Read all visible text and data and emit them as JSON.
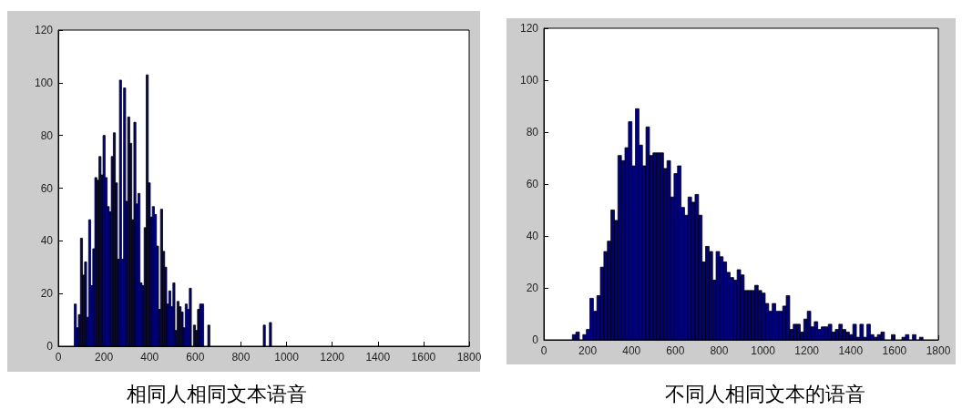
{
  "chart_data": [
    {
      "type": "histogram",
      "title": "相同人相同文本语音",
      "color": "#000080",
      "bins": [
        70,
        79,
        88,
        97,
        106,
        115,
        124,
        133,
        142,
        151,
        160,
        169,
        178,
        187,
        196,
        205,
        214,
        223,
        232,
        241,
        250,
        259,
        268,
        277,
        286,
        295,
        304,
        313,
        322,
        331,
        340,
        349,
        358,
        367,
        376,
        385,
        394,
        403,
        412,
        421,
        430,
        439,
        448,
        457,
        466,
        475,
        484,
        493,
        502,
        511,
        520,
        529,
        538,
        547,
        556,
        565,
        574,
        583,
        592,
        601,
        610,
        619,
        628,
        637,
        646,
        655,
        664,
        673,
        682,
        691,
        700,
        709,
        718,
        727,
        736,
        745,
        754,
        763,
        772,
        781,
        790,
        799,
        808,
        817,
        826,
        835,
        844,
        853,
        862,
        871,
        880,
        889,
        898,
        907,
        916,
        925,
        934
      ],
      "values": [
        16,
        7,
        12,
        41,
        27,
        32,
        11,
        48,
        23,
        37,
        64,
        63,
        72,
        65,
        80,
        64,
        53,
        51,
        72,
        81,
        62,
        33,
        101,
        33,
        98,
        55,
        87,
        77,
        48,
        85,
        54,
        58,
        24,
        23,
        45,
        103,
        62,
        49,
        53,
        50,
        38,
        14,
        52,
        36,
        30,
        16,
        21,
        15,
        24,
        6,
        17,
        15,
        13,
        7,
        16,
        14,
        22,
        0,
        8,
        6,
        14,
        16,
        16,
        0,
        0,
        8,
        0,
        0,
        0,
        0,
        0,
        0,
        0,
        0,
        0,
        0,
        0,
        0,
        0,
        0,
        0,
        0,
        0,
        0,
        0,
        0,
        0,
        0,
        0,
        0,
        0,
        0,
        8,
        0,
        0,
        9
      ],
      "xlim": [
        0,
        1800
      ],
      "xticks": [
        0,
        200,
        400,
        600,
        800,
        1000,
        1200,
        1400,
        1600,
        1800
      ],
      "ylim": [
        0,
        120
      ],
      "yticks": [
        0,
        20,
        40,
        60,
        80,
        100,
        120
      ]
    },
    {
      "type": "histogram",
      "title": "不同人相同文本的语音",
      "color": "#000080",
      "bins": [
        130,
        146,
        162,
        178,
        194,
        210,
        226,
        242,
        258,
        274,
        290,
        306,
        322,
        338,
        354,
        370,
        386,
        402,
        418,
        434,
        450,
        466,
        482,
        498,
        514,
        530,
        546,
        562,
        578,
        594,
        610,
        626,
        642,
        658,
        674,
        690,
        706,
        722,
        738,
        754,
        770,
        786,
        802,
        818,
        834,
        850,
        866,
        882,
        898,
        914,
        930,
        946,
        962,
        978,
        994,
        1010,
        1026,
        1042,
        1058,
        1074,
        1090,
        1106,
        1122,
        1138,
        1154,
        1170,
        1186,
        1202,
        1218,
        1234,
        1250,
        1266,
        1282,
        1298,
        1314,
        1330,
        1346,
        1362,
        1378,
        1394,
        1410,
        1426,
        1442,
        1458,
        1474,
        1490,
        1506,
        1522,
        1538,
        1554,
        1570,
        1586,
        1602,
        1618,
        1634,
        1650,
        1666,
        1682,
        1698,
        1714,
        1730
      ],
      "values": [
        2,
        3,
        0,
        2,
        4,
        16,
        11,
        17,
        28,
        34,
        38,
        50,
        46,
        71,
        69,
        74,
        84,
        67,
        89,
        75,
        67,
        82,
        71,
        72,
        72,
        72,
        66,
        69,
        55,
        64,
        67,
        51,
        48,
        55,
        53,
        56,
        48,
        30,
        36,
        34,
        23,
        34,
        32,
        30,
        26,
        24,
        23,
        27,
        25,
        19,
        19,
        19,
        21,
        19,
        18,
        14,
        11,
        14,
        11,
        11,
        13,
        17,
        4,
        6,
        6,
        3,
        8,
        11,
        5,
        7,
        4,
        5,
        5,
        6,
        3,
        4,
        6,
        4,
        3,
        2,
        6,
        1,
        6,
        1,
        6,
        2,
        1,
        2,
        3,
        0,
        0,
        2,
        0,
        0,
        1,
        2,
        0,
        2,
        0,
        1
      ],
      "xlim": [
        0,
        1800
      ],
      "xticks": [
        0,
        200,
        400,
        600,
        800,
        1000,
        1200,
        1400,
        1600,
        1800
      ],
      "ylim": [
        0,
        120
      ],
      "yticks": [
        0,
        20,
        40,
        60,
        80,
        100,
        120
      ]
    }
  ]
}
